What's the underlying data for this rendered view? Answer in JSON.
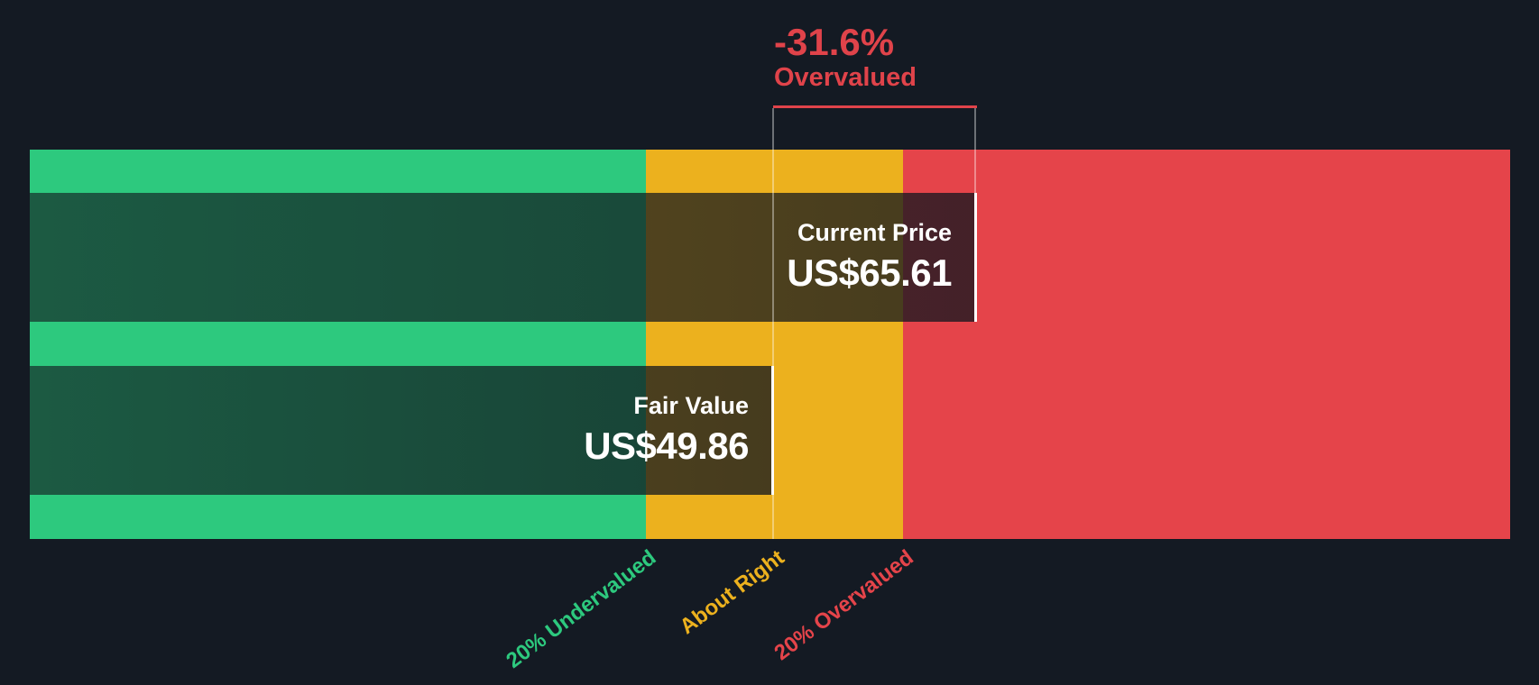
{
  "chart_data": {
    "type": "bar",
    "orientation": "horizontal",
    "badge": {
      "percent": "-31.6%",
      "status": "Overvalued"
    },
    "bars": [
      {
        "label": "Current Price",
        "display_value": "US$65.61",
        "value": 65.61
      },
      {
        "label": "Fair Value",
        "display_value": "US$49.86",
        "value": 49.86
      }
    ],
    "zones": [
      {
        "label": "20% Undervalued",
        "color": "#2dc97e"
      },
      {
        "label": "About Right",
        "color": "#ecb11e"
      },
      {
        "label": "20% Overvalued",
        "color": "#e5444a"
      }
    ]
  },
  "colors": {
    "background": "#141a23",
    "undervalued": "#2dc97e",
    "about_right": "#ecb11e",
    "overvalued": "#e5444a",
    "badge_text": "#e0434a",
    "bar_text": "#ffffff"
  }
}
